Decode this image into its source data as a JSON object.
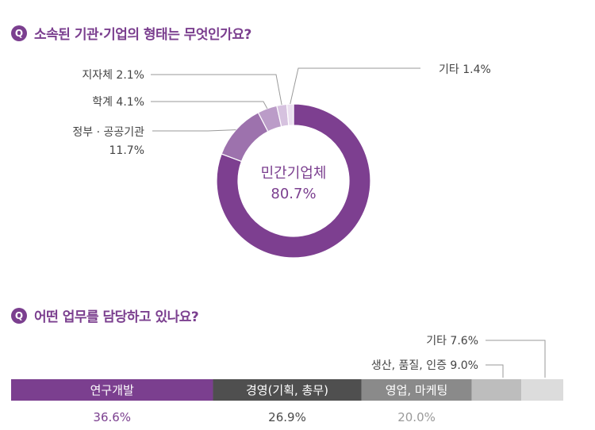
{
  "q1": {
    "badge": "Q",
    "text": "소속된 기관·기업의 형태는 무엇인가요?"
  },
  "q2": {
    "badge": "Q",
    "text": "어떤 업무를 담당하고 있나요?"
  },
  "colors": {
    "accent": "#7b3f8f"
  },
  "chart_data": [
    {
      "type": "pie",
      "variant": "donut",
      "title": "소속된 기관·기업의 형태는 무엇인가요?",
      "center_label": {
        "name": "민간기업체",
        "value": "80.7%"
      },
      "slices": [
        {
          "name": "민간기업체",
          "value": 80.7,
          "label": "80.7%",
          "color": "#7d3f90"
        },
        {
          "name": "정부 · 공공기관",
          "value": 11.7,
          "label": "11.7%",
          "color": "#9d72ad"
        },
        {
          "name": "학계",
          "value": 4.1,
          "label": "4.1%",
          "color": "#bb9cc8"
        },
        {
          "name": "지자체",
          "value": 2.1,
          "label": "2.1%",
          "color": "#d6c2df"
        },
        {
          "name": "기타",
          "value": 1.4,
          "label": "1.4%",
          "color": "#ebe0f0"
        }
      ]
    },
    {
      "type": "bar",
      "variant": "stacked-horizontal",
      "title": "어떤 업무를 담당하고 있나요?",
      "segments": [
        {
          "name": "연구개발",
          "value": 36.6,
          "label": "36.6%",
          "color": "#7b3f8f",
          "label_color": "#7b3f8f"
        },
        {
          "name": "경영(기획, 총무)",
          "value": 26.9,
          "label": "26.9%",
          "color": "#4f4f4f",
          "label_color": "#4a4a4a"
        },
        {
          "name": "영업, 마케팅",
          "value": 20.0,
          "label": "20.0%",
          "color": "#8a8a8a",
          "label_color": "#9a9a9a"
        },
        {
          "name": "생산, 품질, 인증",
          "value": 9.0,
          "label": "9.0%",
          "color": "#bdbdbd",
          "label_color": "#555"
        },
        {
          "name": "기타",
          "value": 7.6,
          "label": "7.6%",
          "color": "#dcdcdc",
          "label_color": "#555"
        }
      ]
    }
  ]
}
